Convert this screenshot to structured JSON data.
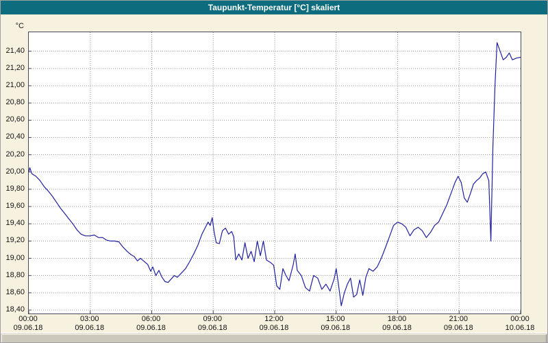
{
  "window": {
    "title": "Taupunkt-Temperatur [°C] skaliert"
  },
  "colors": {
    "titlebar": "#0d6d7e",
    "line": "#1f1f9f",
    "grid": "#909090",
    "plot_background": "#ffffff",
    "page_background": "#f7f2e0"
  },
  "chart_data": {
    "type": "line",
    "title": "Taupunkt-Temperatur [°C] skaliert",
    "y_unit_label": "°C",
    "ylim": [
      18.4,
      21.4
    ],
    "y_tick_step": 0.2,
    "grid": "dotted",
    "legend": "none",
    "line_color": "#1f1f9f",
    "y_tick_labels": [
      "21,40",
      "21,20",
      "21,00",
      "20,80",
      "20,60",
      "20,40",
      "20,20",
      "20,00",
      "19,80",
      "19,60",
      "19,40",
      "19,20",
      "19,00",
      "18,80",
      "18,60",
      "18,40"
    ],
    "x_ticks": [
      {
        "hour": 0,
        "time": "00:00",
        "date": "09.06.18"
      },
      {
        "hour": 3,
        "time": "03:00",
        "date": "09.06.18"
      },
      {
        "hour": 6,
        "time": "06:00",
        "date": "09.06.18"
      },
      {
        "hour": 9,
        "time": "09:00",
        "date": "09.06.18"
      },
      {
        "hour": 12,
        "time": "12:00",
        "date": "09.06.18"
      },
      {
        "hour": 15,
        "time": "15:00",
        "date": "09.06.18"
      },
      {
        "hour": 18,
        "time": "18:00",
        "date": "09.06.18"
      },
      {
        "hour": 21,
        "time": "21:00",
        "date": "09.06.18"
      },
      {
        "hour": 24,
        "time": "00:00",
        "date": "10.06.18"
      }
    ],
    "series": [
      {
        "name": "Taupunkt-Temperatur",
        "points": [
          [
            0.0,
            20.0
          ],
          [
            0.05,
            20.05
          ],
          [
            0.15,
            19.98
          ],
          [
            0.35,
            19.95
          ],
          [
            0.55,
            19.9
          ],
          [
            0.75,
            19.83
          ],
          [
            0.95,
            19.78
          ],
          [
            1.15,
            19.72
          ],
          [
            1.35,
            19.65
          ],
          [
            1.55,
            19.58
          ],
          [
            1.75,
            19.52
          ],
          [
            1.95,
            19.46
          ],
          [
            2.15,
            19.4
          ],
          [
            2.35,
            19.33
          ],
          [
            2.55,
            19.28
          ],
          [
            2.75,
            19.26
          ],
          [
            3.0,
            19.26
          ],
          [
            3.2,
            19.27
          ],
          [
            3.4,
            19.24
          ],
          [
            3.6,
            19.24
          ],
          [
            3.8,
            19.21
          ],
          [
            4.0,
            19.2
          ],
          [
            4.2,
            19.2
          ],
          [
            4.4,
            19.19
          ],
          [
            4.6,
            19.13
          ],
          [
            4.8,
            19.08
          ],
          [
            5.0,
            19.04
          ],
          [
            5.15,
            19.02
          ],
          [
            5.3,
            18.97
          ],
          [
            5.45,
            19.0
          ],
          [
            5.6,
            18.97
          ],
          [
            5.8,
            18.93
          ],
          [
            5.95,
            18.85
          ],
          [
            6.05,
            18.9
          ],
          [
            6.2,
            18.8
          ],
          [
            6.35,
            18.86
          ],
          [
            6.5,
            18.78
          ],
          [
            6.65,
            18.73
          ],
          [
            6.8,
            18.72
          ],
          [
            6.95,
            18.76
          ],
          [
            7.1,
            18.8
          ],
          [
            7.25,
            18.78
          ],
          [
            7.45,
            18.83
          ],
          [
            7.65,
            18.88
          ],
          [
            7.85,
            18.96
          ],
          [
            8.05,
            19.05
          ],
          [
            8.25,
            19.15
          ],
          [
            8.45,
            19.28
          ],
          [
            8.6,
            19.35
          ],
          [
            8.75,
            19.42
          ],
          [
            8.85,
            19.38
          ],
          [
            8.95,
            19.47
          ],
          [
            9.05,
            19.3
          ],
          [
            9.15,
            19.18
          ],
          [
            9.3,
            19.17
          ],
          [
            9.45,
            19.32
          ],
          [
            9.6,
            19.35
          ],
          [
            9.75,
            19.28
          ],
          [
            9.9,
            19.31
          ],
          [
            10.0,
            19.25
          ],
          [
            10.1,
            18.98
          ],
          [
            10.25,
            19.05
          ],
          [
            10.4,
            18.98
          ],
          [
            10.55,
            19.18
          ],
          [
            10.7,
            19.0
          ],
          [
            10.85,
            19.08
          ],
          [
            11.0,
            18.96
          ],
          [
            11.15,
            19.2
          ],
          [
            11.3,
            19.03
          ],
          [
            11.45,
            19.2
          ],
          [
            11.6,
            18.98
          ],
          [
            11.8,
            18.95
          ],
          [
            11.95,
            18.92
          ],
          [
            12.1,
            18.68
          ],
          [
            12.25,
            18.64
          ],
          [
            12.4,
            18.88
          ],
          [
            12.55,
            18.8
          ],
          [
            12.7,
            18.74
          ],
          [
            12.9,
            18.92
          ],
          [
            13.0,
            19.05
          ],
          [
            13.1,
            18.86
          ],
          [
            13.3,
            18.8
          ],
          [
            13.5,
            18.66
          ],
          [
            13.7,
            18.62
          ],
          [
            13.9,
            18.8
          ],
          [
            14.1,
            18.77
          ],
          [
            14.3,
            18.64
          ],
          [
            14.5,
            18.7
          ],
          [
            14.7,
            18.62
          ],
          [
            14.9,
            18.76
          ],
          [
            15.0,
            18.88
          ],
          [
            15.1,
            18.72
          ],
          [
            15.25,
            18.45
          ],
          [
            15.4,
            18.6
          ],
          [
            15.55,
            18.7
          ],
          [
            15.7,
            18.77
          ],
          [
            15.85,
            18.55
          ],
          [
            16.0,
            18.58
          ],
          [
            16.15,
            18.75
          ],
          [
            16.3,
            18.57
          ],
          [
            16.45,
            18.78
          ],
          [
            16.6,
            18.88
          ],
          [
            16.8,
            18.85
          ],
          [
            17.0,
            18.9
          ],
          [
            17.2,
            19.0
          ],
          [
            17.4,
            19.12
          ],
          [
            17.6,
            19.25
          ],
          [
            17.8,
            19.38
          ],
          [
            18.0,
            19.42
          ],
          [
            18.2,
            19.4
          ],
          [
            18.4,
            19.36
          ],
          [
            18.6,
            19.26
          ],
          [
            18.8,
            19.33
          ],
          [
            19.0,
            19.36
          ],
          [
            19.2,
            19.32
          ],
          [
            19.4,
            19.24
          ],
          [
            19.6,
            19.3
          ],
          [
            19.8,
            19.38
          ],
          [
            20.0,
            19.42
          ],
          [
            20.2,
            19.52
          ],
          [
            20.4,
            19.62
          ],
          [
            20.6,
            19.75
          ],
          [
            20.8,
            19.88
          ],
          [
            20.95,
            19.95
          ],
          [
            21.1,
            19.88
          ],
          [
            21.25,
            19.7
          ],
          [
            21.4,
            19.65
          ],
          [
            21.55,
            19.75
          ],
          [
            21.7,
            19.86
          ],
          [
            21.85,
            19.9
          ],
          [
            22.0,
            19.93
          ],
          [
            22.15,
            19.98
          ],
          [
            22.3,
            20.0
          ],
          [
            22.45,
            19.9
          ],
          [
            22.55,
            19.2
          ],
          [
            22.65,
            20.3
          ],
          [
            22.75,
            21.0
          ],
          [
            22.85,
            21.5
          ],
          [
            23.0,
            21.4
          ],
          [
            23.15,
            21.3
          ],
          [
            23.3,
            21.33
          ],
          [
            23.45,
            21.38
          ],
          [
            23.6,
            21.3
          ],
          [
            23.8,
            21.32
          ],
          [
            24.0,
            21.33
          ]
        ]
      }
    ]
  }
}
